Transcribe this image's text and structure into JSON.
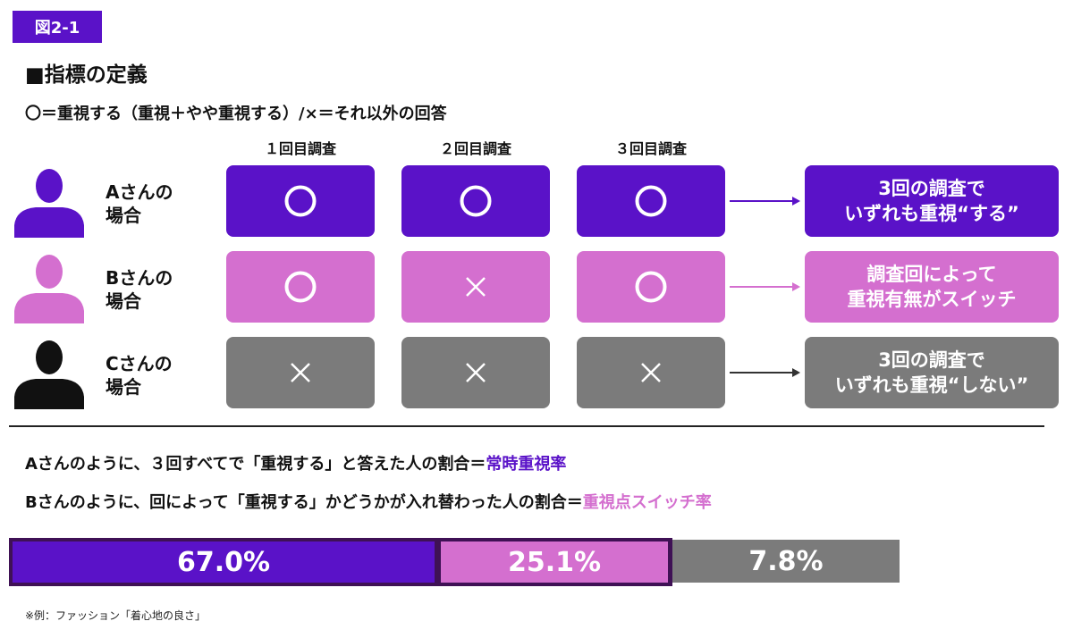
{
  "figure_label": "図2-1",
  "heading": "■指標の定義",
  "subheading": "〇＝重視する（重視＋やや重視する）/×＝それ以外の回答",
  "survey_columns": [
    "１回目調査",
    "２回目調査",
    "３回目調査"
  ],
  "rows": [
    {
      "label_line1": "Aさんの",
      "label_line2": "場合",
      "marks": [
        "〇",
        "〇",
        "〇"
      ],
      "result_line1": "3回の調査で",
      "result_line2": "いずれも重視“する”"
    },
    {
      "label_line1": "Bさんの",
      "label_line2": "場合",
      "marks": [
        "〇",
        "×",
        "〇"
      ],
      "result_line1": "調査回によって",
      "result_line2": "重視有無がスイッチ"
    },
    {
      "label_line1": "Cさんの",
      "label_line2": "場合",
      "marks": [
        "×",
        "×",
        "×"
      ],
      "result_line1": "3回の調査で",
      "result_line2": "いずれも重視“しない”"
    }
  ],
  "definitions": [
    {
      "text": "Aさんのように、３回すべてで「重視する」と答えた人の割合＝",
      "term": "常時重視率"
    },
    {
      "text": "Bさんのように、回によって「重視する」かどうかが入れ替わった人の割合＝",
      "term": "重視点スイッチ率"
    }
  ],
  "bar": [
    {
      "label": "67.0%",
      "value": 67.0
    },
    {
      "label": "25.1%",
      "value": 25.1
    },
    {
      "label": "7.8%",
      "value": 7.8
    }
  ],
  "footnote": "※例：ファッション「着心地の良さ」",
  "colors": {
    "purple": "#5a12c8",
    "pink": "#d46fcf",
    "gray": "#7b7b7b",
    "black": "#111111",
    "bar_frame": "#3f1155"
  }
}
